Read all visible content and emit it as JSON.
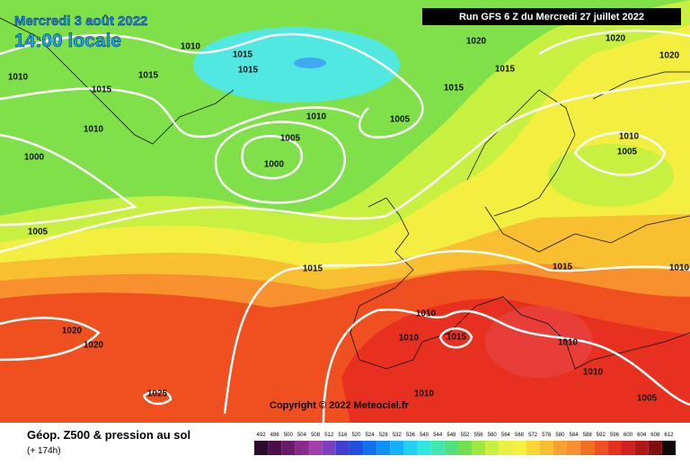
{
  "header": {
    "date": "Mercredi 3 août 2022",
    "time": "14:00 locale",
    "run": "Run GFS 6 Z du Mercredi 27 juillet 2022"
  },
  "isobar_labels": [
    "1010",
    "1015",
    "1015",
    "1015",
    "1015",
    "1010",
    "1010",
    "1000",
    "1005",
    "1000",
    "1010",
    "1005",
    "1015",
    "1015",
    "1020",
    "1020",
    "1020",
    "1010",
    "1005",
    "1005",
    "1015",
    "1015",
    "1010",
    "1010",
    "1010",
    "1015",
    "1010",
    "1010",
    "1005",
    "1010",
    "1020",
    "1020",
    "1025"
  ],
  "copyright": "Copyright © 2022 Meteociel.fr",
  "footer": {
    "title": "Géop. Z500 & pression au sol",
    "lead": "(+ 174h)"
  },
  "legend": {
    "values": [
      "492",
      "496",
      "500",
      "504",
      "508",
      "512",
      "516",
      "520",
      "524",
      "528",
      "532",
      "536",
      "540",
      "544",
      "548",
      "552",
      "556",
      "560",
      "564",
      "568",
      "572",
      "576",
      "580",
      "584",
      "588",
      "592",
      "596",
      "600",
      "604",
      "608",
      "612"
    ],
    "colors": [
      "#2b0a2b",
      "#4a1048",
      "#6a1a6a",
      "#8a2a8a",
      "#a040a8",
      "#7a40c0",
      "#4040d0",
      "#2050e0",
      "#1070f0",
      "#1090ff",
      "#10b0ff",
      "#20d0f0",
      "#30e8e0",
      "#40e8b0",
      "#50e080",
      "#70e050",
      "#a0e840",
      "#c8f040",
      "#e8f040",
      "#f8f040",
      "#f8d830",
      "#f8c030",
      "#f8a030",
      "#f89030",
      "#f07020",
      "#f05020",
      "#e83020",
      "#d02020",
      "#b01818",
      "#801010",
      "#100808"
    ]
  }
}
